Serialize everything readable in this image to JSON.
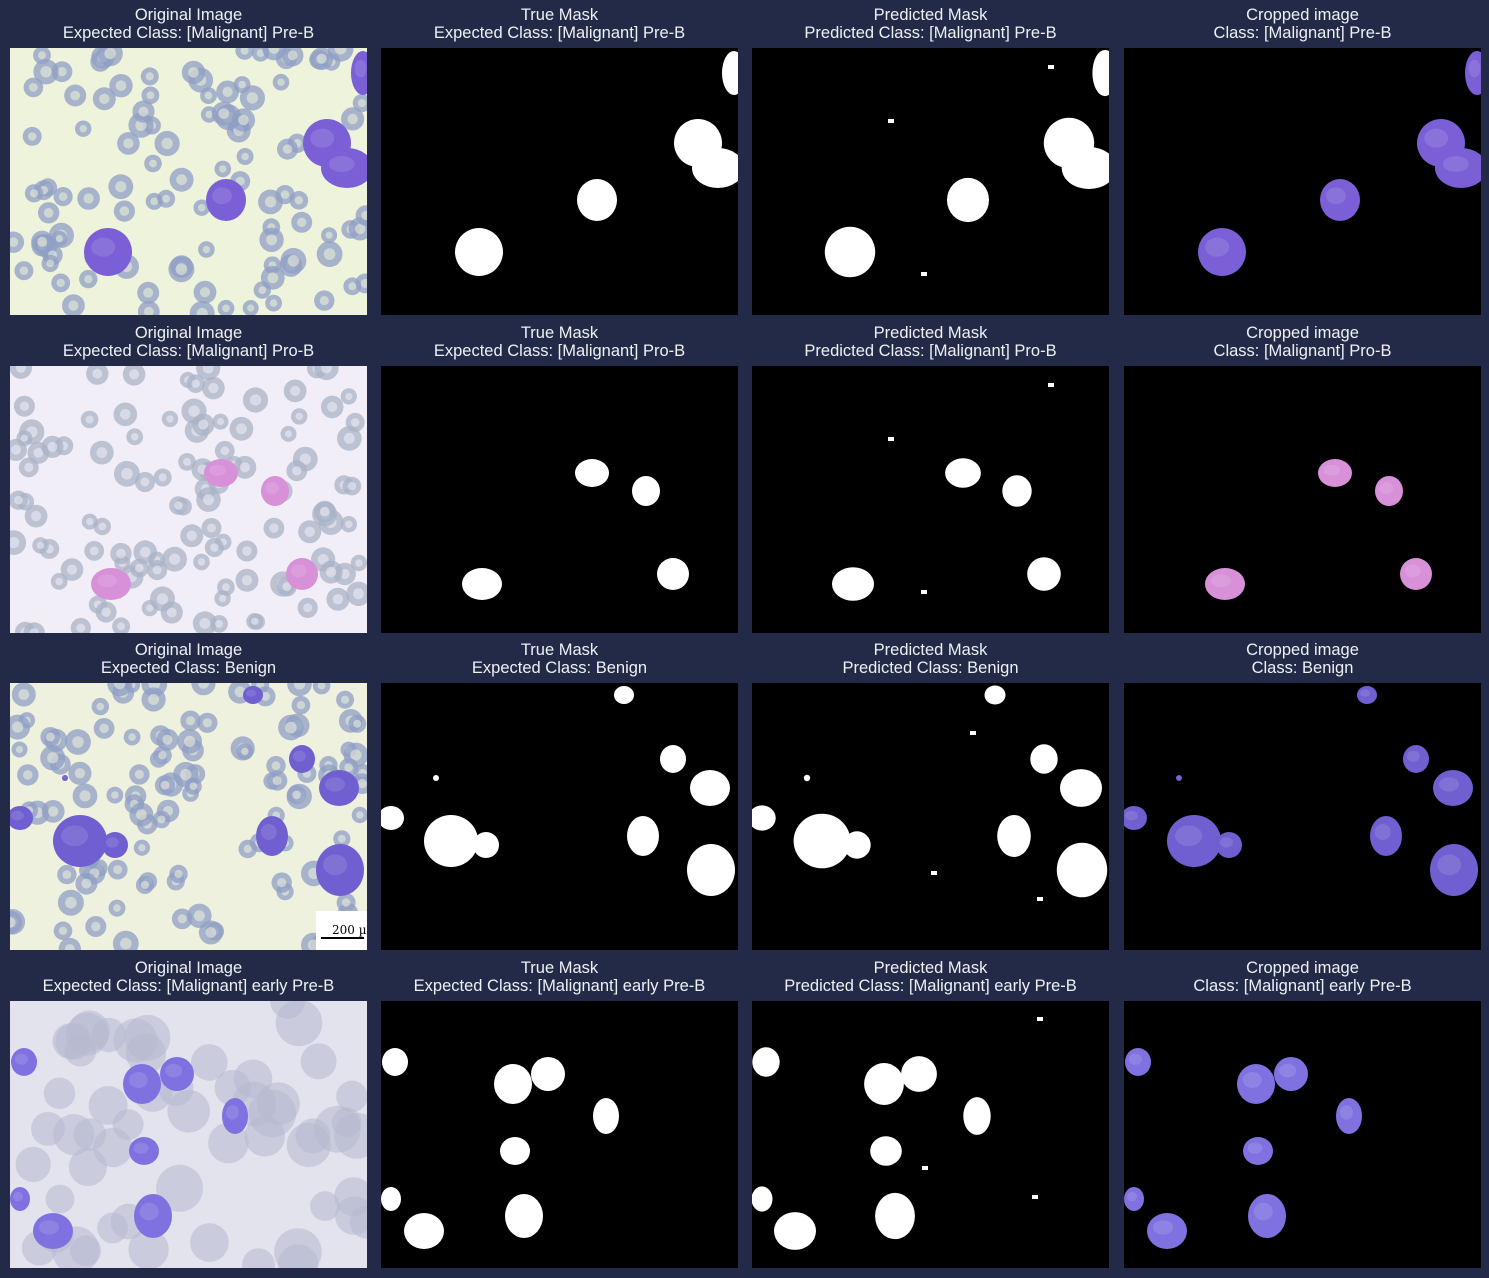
{
  "rows": [
    {
      "key": "pre-b",
      "kind": "pre-b",
      "panels": [
        {
          "type": "original",
          "title": "Original Image",
          "subtitle": "Expected Class: [Malignant] Pre-B"
        },
        {
          "type": "true-mask",
          "title": "True Mask",
          "subtitle": "Expected Class: [Malignant] Pre-B"
        },
        {
          "type": "predicted-mask",
          "title": "Predicted Mask",
          "subtitle": "Predicted Class: [Malignant] Pre-B"
        },
        {
          "type": "cropped",
          "title": "Cropped image",
          "subtitle": "Class: [Malignant] Pre-B"
        }
      ]
    },
    {
      "key": "pro-b",
      "kind": "pro-b",
      "panels": [
        {
          "type": "original",
          "title": "Original Image",
          "subtitle": "Expected Class: [Malignant] Pro-B"
        },
        {
          "type": "true-mask",
          "title": "True Mask",
          "subtitle": "Expected Class: [Malignant] Pro-B"
        },
        {
          "type": "predicted-mask",
          "title": "Predicted Mask",
          "subtitle": "Predicted Class: [Malignant] Pro-B"
        },
        {
          "type": "cropped",
          "title": "Cropped image",
          "subtitle": "Class: [Malignant] Pro-B"
        }
      ]
    },
    {
      "key": "benign",
      "kind": "benign",
      "scale_label": "200 µ",
      "panels": [
        {
          "type": "original",
          "title": "Original Image",
          "subtitle": "Expected Class: Benign"
        },
        {
          "type": "true-mask",
          "title": "True Mask",
          "subtitle": "Expected Class: Benign"
        },
        {
          "type": "predicted-mask",
          "title": "Predicted Mask",
          "subtitle": "Predicted Class: Benign"
        },
        {
          "type": "cropped",
          "title": "Cropped image",
          "subtitle": "Class: Benign"
        }
      ]
    },
    {
      "key": "early-pre-b",
      "kind": "early-pre-b",
      "panels": [
        {
          "type": "original",
          "title": "Original Image",
          "subtitle": "Expected Class: [Malignant] early Pre-B"
        },
        {
          "type": "true-mask",
          "title": "True Mask",
          "subtitle": "Expected Class: [Malignant] early Pre-B"
        },
        {
          "type": "predicted-mask",
          "title": "Predicted Mask",
          "subtitle": "Predicted Class: [Malignant] early Pre-B"
        },
        {
          "type": "cropped",
          "title": "Cropped image",
          "subtitle": "Class: [Malignant] early Pre-B"
        }
      ]
    }
  ],
  "colors": {
    "background": "#232a47",
    "title_text": "#eef0f6",
    "mask_bg": "#000000",
    "mask_fg": "#ffffff",
    "pre_b_slide": "#eef3dc",
    "pro_b_slide": "#f1eef7",
    "benign_slide": "#eef1de",
    "early_pre_b_slide": "#e3e3ee",
    "blast_cell": "#7c62d8",
    "pink_cell": "#d68ad6",
    "red_cell": "#9aa2c4"
  }
}
